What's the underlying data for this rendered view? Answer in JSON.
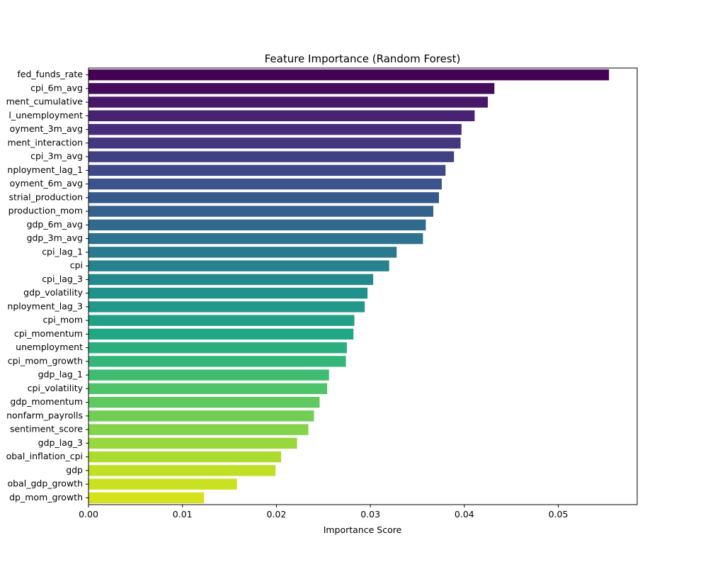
{
  "chart_data": {
    "type": "bar",
    "orientation": "horizontal",
    "title": "Feature Importance (Random Forest)",
    "xlabel": "Importance Score",
    "ylabel": "",
    "xlim": [
      0,
      0.0584
    ],
    "xticks": [
      0.0,
      0.01,
      0.02,
      0.03,
      0.04,
      0.05
    ],
    "xtick_labels": [
      "0.00",
      "0.01",
      "0.02",
      "0.03",
      "0.04",
      "0.05"
    ],
    "grid": false,
    "palette": "viridis",
    "color_start": "#440154",
    "color_end": "#dfe318",
    "categories": [
      "fed_funds_rate",
      "cpi_6m_avg",
      "ment_cumulative",
      "l_unemployment",
      "oyment_3m_avg",
      "ment_interaction",
      "cpi_3m_avg",
      "nployment_lag_1",
      "oyment_6m_avg",
      "strial_production",
      "production_mom",
      "gdp_6m_avg",
      "gdp_3m_avg",
      "cpi_lag_1",
      "cpi",
      "cpi_lag_3",
      "gdp_volatility",
      "nployment_lag_3",
      "cpi_mom",
      "cpi_momentum",
      "unemployment",
      "cpi_mom_growth",
      "gdp_lag_1",
      "cpi_volatility",
      "gdp_momentum",
      "nonfarm_payrolls",
      "sentiment_score",
      "gdp_lag_3",
      "obal_inflation_cpi",
      "gdp",
      "obal_gdp_growth",
      "dp_mom_growth"
    ],
    "values": [
      0.0554,
      0.0432,
      0.0425,
      0.0411,
      0.0397,
      0.0396,
      0.0389,
      0.038,
      0.0376,
      0.0373,
      0.0367,
      0.0359,
      0.0356,
      0.0328,
      0.032,
      0.0303,
      0.0297,
      0.0294,
      0.0283,
      0.0282,
      0.0275,
      0.0274,
      0.0256,
      0.0254,
      0.0246,
      0.024,
      0.0234,
      0.0222,
      0.0205,
      0.0199,
      0.0158,
      0.0123
    ]
  }
}
